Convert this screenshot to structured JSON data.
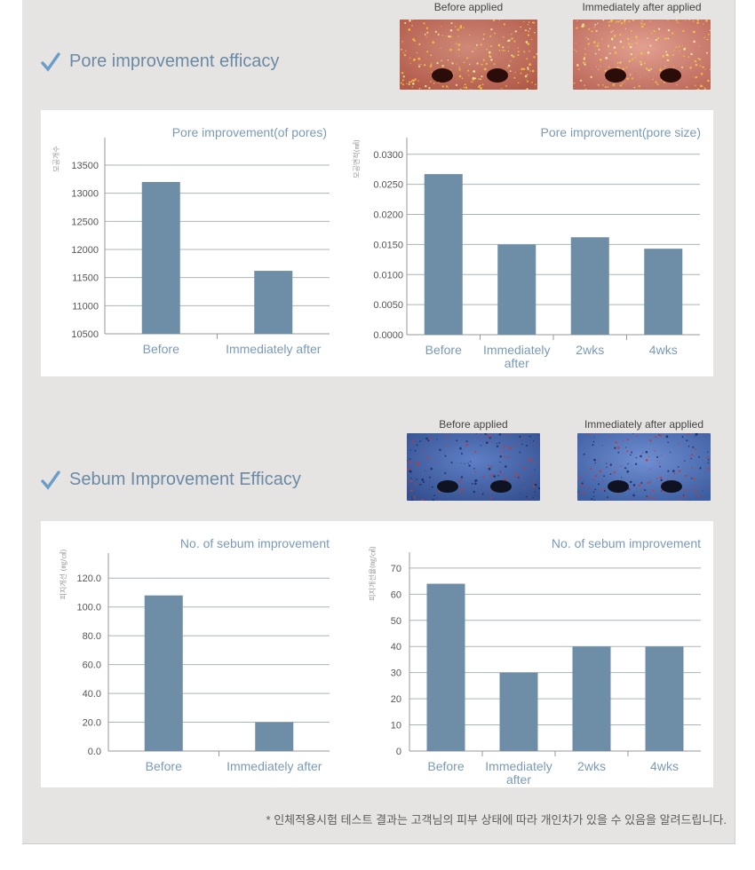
{
  "sections": [
    {
      "title": "Pore improvement efficacy",
      "icon": "check-icon",
      "photo_captions": [
        "Before applied",
        "Immediately after applied"
      ],
      "photo_style": "pore"
    },
    {
      "title": "Sebum Improvement Efficacy",
      "icon": "check-icon",
      "photo_captions": [
        "Before applied",
        "Immediately after applied"
      ],
      "photo_style": "sebum"
    }
  ],
  "chart_data": [
    {
      "type": "bar",
      "title": "Pore improvement(of pores)",
      "ylabel": "모공개수",
      "categories": [
        "Before",
        "Immediately after"
      ],
      "values": [
        13200,
        11620
      ],
      "ylim": [
        10500,
        13800
      ],
      "yticks": [
        "10500",
        "11000",
        "11500",
        "12000",
        "12500",
        "13000",
        "13500"
      ],
      "tick_values": [
        10500,
        11000,
        11500,
        12000,
        12500,
        13000,
        13500
      ],
      "grid": true
    },
    {
      "type": "bar",
      "title": "Pore improvement(pore size)",
      "ylabel": "모공면적(㎟)",
      "categories": [
        "Before",
        "Immediately after",
        "2wks",
        "4wks"
      ],
      "values": [
        0.0267,
        0.015,
        0.0162,
        0.0143
      ],
      "ylim": [
        0,
        0.031
      ],
      "yticks": [
        "0.0000",
        "0.0050",
        "0.0100",
        "0.0150",
        "0.0200",
        "0.0250",
        "0.0300"
      ],
      "tick_values": [
        0,
        0.005,
        0.01,
        0.015,
        0.02,
        0.025,
        0.03
      ],
      "grid": true
    },
    {
      "type": "bar",
      "title": "No. of sebum improvement",
      "ylabel": "피지개선 (㎎/㎠)",
      "categories": [
        "Before",
        "Immediately after"
      ],
      "values": [
        108,
        20
      ],
      "ylim": [
        0,
        130
      ],
      "yticks": [
        "0.0",
        "20.0",
        "40.0",
        "60.0",
        "80.0",
        "100.0",
        "120.0"
      ],
      "tick_values": [
        0,
        20,
        40,
        60,
        80,
        100,
        120
      ],
      "grid": true
    },
    {
      "type": "bar",
      "title": "No. of sebum improvement",
      "ylabel": "피지개선율(㎎/㎠)",
      "categories": [
        "Before",
        "Immediately after",
        "2wks",
        "4wks"
      ],
      "values": [
        64,
        30,
        40,
        40
      ],
      "ylim": [
        0,
        72
      ],
      "yticks": [
        "0",
        "10",
        "20",
        "30",
        "40",
        "50",
        "60",
        "70"
      ],
      "tick_values": [
        0,
        10,
        20,
        30,
        40,
        50,
        60,
        70
      ],
      "grid": true
    }
  ],
  "colors": {
    "bar": "#6e8ea7",
    "title": "#7a9ab8",
    "tick": "#555555",
    "axis": "#999999",
    "grid": "#a9b4bd"
  },
  "footnote": "* 인체적용시험 테스트 결과는 고객님의 피부 상태에 따라 개인차가 있을 수 있음을 알려드립니다."
}
